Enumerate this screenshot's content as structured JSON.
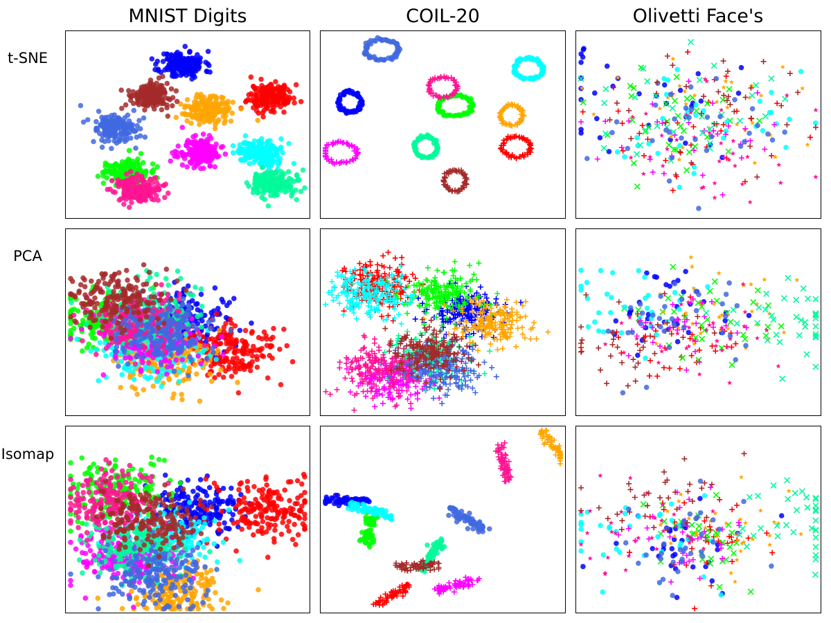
{
  "figure": {
    "columns": [
      "MNIST Digits",
      "COIL-20",
      "Olivetti Face's"
    ],
    "rows": [
      "t-SNE",
      "PCA",
      "Isomap"
    ]
  },
  "colors": [
    "#0000ff",
    "#ff0000",
    "#00ff00",
    "#ffa500",
    "#00ffff",
    "#ff00ff",
    "#00fa9a",
    "#ff1493",
    "#4169e1",
    "#a52a2a"
  ],
  "chart_data": [
    {
      "type": "scatter",
      "method": "t-SNE",
      "dataset": "MNIST Digits",
      "marker": "circle",
      "seed": 11,
      "spread": 0.045,
      "clusters": [
        [
          0.48,
          0.82
        ],
        [
          0.84,
          0.65
        ],
        [
          0.25,
          0.25
        ],
        [
          0.58,
          0.58
        ],
        [
          0.8,
          0.35
        ],
        [
          0.55,
          0.35
        ],
        [
          0.85,
          0.18
        ],
        [
          0.3,
          0.15
        ],
        [
          0.2,
          0.48
        ],
        [
          0.35,
          0.65
        ]
      ]
    },
    {
      "type": "scatter",
      "method": "t-SNE",
      "dataset": "COIL-20",
      "marker": "ring",
      "seed": 23,
      "spread": 0.03,
      "clusters": [
        [
          0.12,
          0.62
        ],
        [
          0.8,
          0.38
        ],
        [
          0.55,
          0.6
        ],
        [
          0.78,
          0.55
        ],
        [
          0.85,
          0.8
        ],
        [
          0.08,
          0.35
        ],
        [
          0.43,
          0.38
        ],
        [
          0.5,
          0.7
        ],
        [
          0.25,
          0.9
        ],
        [
          0.55,
          0.2
        ]
      ]
    },
    {
      "type": "scatter",
      "method": "t-SNE",
      "dataset": "Olivetti Face's",
      "marker": "mixed",
      "seed": 37,
      "spread": 0.2,
      "clusters": [
        [
          0.25,
          0.6
        ],
        [
          0.5,
          0.5
        ],
        [
          0.4,
          0.55
        ],
        [
          0.5,
          0.6
        ],
        [
          0.5,
          0.5
        ],
        [
          0.45,
          0.45
        ],
        [
          0.4,
          0.6
        ],
        [
          0.6,
          0.45
        ],
        [
          0.5,
          0.5
        ],
        [
          0.55,
          0.55
        ]
      ]
    },
    {
      "type": "scatter",
      "method": "PCA",
      "dataset": "MNIST Digits",
      "marker": "circle",
      "seed": 41,
      "spread": 0.1,
      "clusters": [
        [
          0.5,
          0.5
        ],
        [
          0.68,
          0.35
        ],
        [
          0.17,
          0.5
        ],
        [
          0.42,
          0.3
        ],
        [
          0.35,
          0.35
        ],
        [
          0.35,
          0.4
        ],
        [
          0.35,
          0.55
        ],
        [
          0.3,
          0.5
        ],
        [
          0.4,
          0.45
        ],
        [
          0.2,
          0.62
        ]
      ]
    },
    {
      "type": "scatter",
      "method": "PCA",
      "dataset": "COIL-20",
      "marker": "plus",
      "seed": 53,
      "spread": 0.08,
      "clusters": [
        [
          0.6,
          0.55
        ],
        [
          0.25,
          0.7
        ],
        [
          0.5,
          0.65
        ],
        [
          0.7,
          0.5
        ],
        [
          0.2,
          0.65
        ],
        [
          0.3,
          0.2
        ],
        [
          0.45,
          0.3
        ],
        [
          0.25,
          0.25
        ],
        [
          0.5,
          0.25
        ],
        [
          0.45,
          0.35
        ]
      ]
    },
    {
      "type": "scatter",
      "method": "PCA",
      "dataset": "Olivetti Face's",
      "marker": "mixed",
      "seed": 67,
      "spread": 0.14,
      "clusters": [
        [
          0.4,
          0.55
        ],
        [
          0.4,
          0.35
        ],
        [
          0.5,
          0.5
        ],
        [
          0.55,
          0.55
        ],
        [
          0.15,
          0.55
        ],
        [
          0.45,
          0.45
        ],
        [
          0.85,
          0.5
        ],
        [
          0.5,
          0.45
        ],
        [
          0.4,
          0.5
        ],
        [
          0.2,
          0.35
        ]
      ]
    },
    {
      "type": "scatter",
      "method": "Isomap",
      "dataset": "MNIST Digits",
      "marker": "circle",
      "seed": 71,
      "spread": 0.1,
      "clusters": [
        [
          0.55,
          0.55
        ],
        [
          0.82,
          0.55
        ],
        [
          0.2,
          0.65
        ],
        [
          0.45,
          0.12
        ],
        [
          0.4,
          0.4
        ],
        [
          0.25,
          0.3
        ],
        [
          0.3,
          0.35
        ],
        [
          0.18,
          0.6
        ],
        [
          0.35,
          0.2
        ],
        [
          0.35,
          0.5
        ]
      ]
    },
    {
      "type": "scatter",
      "method": "Isomap",
      "dataset": "COIL-20",
      "marker": "trajectory",
      "seed": 83,
      "spread": 0.03,
      "clusters": [
        [
          0.1,
          0.6
        ],
        [
          0.3,
          0.1
        ],
        [
          0.2,
          0.45
        ],
        [
          0.95,
          0.9
        ],
        [
          0.2,
          0.55
        ],
        [
          0.55,
          0.15
        ],
        [
          0.45,
          0.3
        ],
        [
          0.75,
          0.8
        ],
        [
          0.6,
          0.5
        ],
        [
          0.4,
          0.25
        ]
      ]
    },
    {
      "type": "scatter",
      "method": "Isomap",
      "dataset": "Olivetti Face's",
      "marker": "mixed",
      "seed": 97,
      "spread": 0.16,
      "clusters": [
        [
          0.35,
          0.35
        ],
        [
          0.5,
          0.4
        ],
        [
          0.55,
          0.4
        ],
        [
          0.55,
          0.45
        ],
        [
          0.2,
          0.4
        ],
        [
          0.45,
          0.45
        ],
        [
          0.9,
          0.5
        ],
        [
          0.3,
          0.45
        ],
        [
          0.5,
          0.35
        ],
        [
          0.3,
          0.6
        ]
      ]
    }
  ]
}
